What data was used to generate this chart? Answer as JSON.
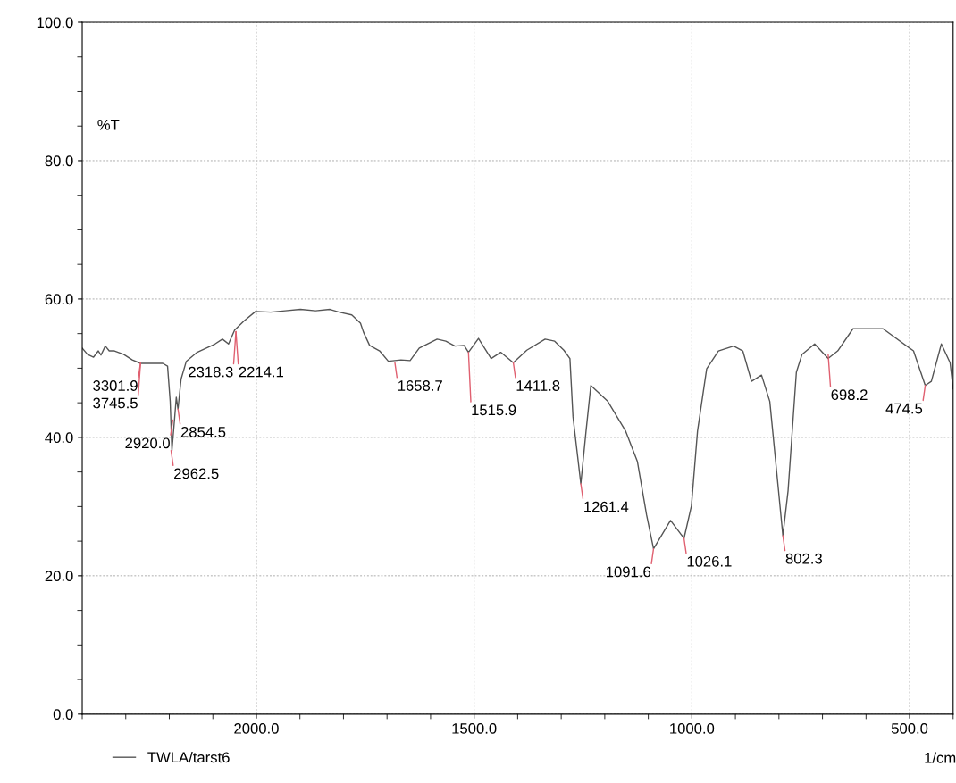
{
  "chart_data": {
    "type": "line",
    "ylabel": "%T",
    "xlabel": "1/cm",
    "series": [
      {
        "name": "TWLA/tarst6",
        "color": "#555555",
        "x": [
          2400,
          2388,
          2374,
          2363,
          2357,
          2347,
          2338,
          2326,
          2305,
          2285,
          2266,
          2250,
          2215,
          2204,
          2198,
          2194,
          2188,
          2184,
          2180,
          2173,
          2161,
          2136,
          2095,
          2078,
          2064,
          2050,
          2029,
          2002,
          1967,
          1934,
          1899,
          1864,
          1831,
          1810,
          1781,
          1761,
          1754,
          1740,
          1717,
          1697,
          1668,
          1647,
          1626,
          1585,
          1565,
          1544,
          1523,
          1513,
          1490,
          1461,
          1439,
          1410,
          1379,
          1337,
          1315,
          1294,
          1280,
          1273,
          1255,
          1243,
          1232,
          1193,
          1152,
          1125,
          1104,
          1088,
          1049,
          1018,
          1001,
          987,
          966,
          939,
          904,
          883,
          863,
          840,
          821,
          801,
          791,
          779,
          760,
          747,
          718,
          687,
          665,
          630,
          561,
          491,
          464,
          450,
          427,
          407,
          400
        ],
        "values": [
          52.9,
          52.0,
          51.6,
          52.5,
          51.9,
          53.2,
          52.5,
          52.5,
          52.0,
          51.2,
          50.7,
          50.7,
          50.7,
          50.3,
          45.2,
          38.1,
          42.6,
          45.8,
          44.1,
          48.4,
          51.0,
          52.3,
          53.5,
          54.2,
          53.5,
          55.5,
          56.8,
          58.2,
          58.1,
          58.3,
          58.5,
          58.3,
          58.5,
          58.1,
          57.7,
          56.5,
          55.2,
          53.3,
          52.5,
          51.0,
          51.2,
          51.1,
          52.9,
          54.2,
          53.9,
          53.2,
          53.3,
          52.3,
          54.3,
          51.4,
          52.3,
          50.8,
          52.6,
          54.2,
          53.9,
          52.6,
          51.4,
          43.0,
          33.3,
          40.9,
          47.5,
          45.2,
          40.9,
          36.5,
          28.8,
          23.9,
          28.0,
          25.4,
          30.1,
          40.9,
          49.9,
          52.5,
          53.2,
          52.5,
          48.1,
          49.0,
          45.2,
          32.3,
          25.8,
          32.3,
          49.4,
          52.0,
          53.5,
          51.4,
          52.5,
          55.7,
          55.7,
          52.5,
          47.5,
          48.1,
          53.5,
          50.8,
          47.0
        ]
      }
    ],
    "xlim": [
      2400,
      400
    ],
    "xticks": [
      {
        "value": 2000,
        "label": "2000.0"
      },
      {
        "value": 1500,
        "label": "1500.0"
      },
      {
        "value": 1000,
        "label": "1000.0"
      },
      {
        "value": 500,
        "label": "500.0"
      }
    ],
    "ylim": [
      0,
      100
    ],
    "yticks": [
      {
        "value": 0,
        "label": "0.0"
      },
      {
        "value": 20,
        "label": "20.0"
      },
      {
        "value": 40,
        "label": "40.0"
      },
      {
        "value": 60,
        "label": "60.0"
      },
      {
        "value": 80,
        "label": "80.0"
      },
      {
        "value": 100,
        "label": "100.0"
      }
    ],
    "grid": true,
    "legend": "bottom left",
    "marker": "none",
    "line_style": "solid",
    "annotations": [
      {
        "text": "3301.9",
        "x": 2266,
        "y": 50.8
      },
      {
        "text": "3745.5",
        "x": 2266,
        "y": 50.8
      },
      {
        "text": "2854.5",
        "x": 2180,
        "y": 44.1
      },
      {
        "text": "2920.0",
        "x": 2192,
        "y": 42.5
      },
      {
        "text": "2962.5",
        "x": 2196,
        "y": 38.1
      },
      {
        "text": "2214.1",
        "x": 2047,
        "y": 55.3
      },
      {
        "text": "2318.3",
        "x": 2047,
        "y": 55.3
      },
      {
        "text": "1658.7",
        "x": 1682,
        "y": 50.8
      },
      {
        "text": "1411.8",
        "x": 1410,
        "y": 50.8
      },
      {
        "text": "1515.9",
        "x": 1513,
        "y": 52.3
      },
      {
        "text": "1261.4",
        "x": 1255,
        "y": 33.3
      },
      {
        "text": "1026.1",
        "x": 1018,
        "y": 25.4
      },
      {
        "text": "1091.6",
        "x": 1088,
        "y": 23.9
      },
      {
        "text": "802.3",
        "x": 791,
        "y": 25.8
      },
      {
        "text": "698.2",
        "x": 687,
        "y": 52.0
      },
      {
        "text": "474.5",
        "x": 464,
        "y": 47.5
      }
    ]
  }
}
